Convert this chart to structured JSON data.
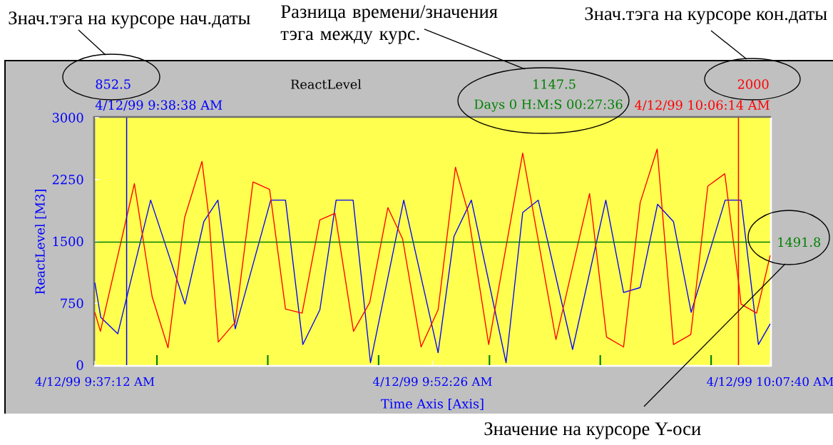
{
  "chart_data": {
    "type": "line",
    "title": "ReactLevel",
    "xlabel": "Time Axis [Axis]",
    "ylabel": "ReactLevel [M3]",
    "xlim": [
      "1999-04-12T09:37:12",
      "1999-04-12T10:07:40"
    ],
    "ylim": [
      0,
      3000
    ],
    "xticks": [
      {
        "value": "1999-04-12T09:37:12",
        "label": "4/12/99 9:37:12 AM"
      },
      {
        "value": "1999-04-12T09:40:00",
        "label": null
      },
      {
        "value": "1999-04-12T09:45:00",
        "label": null
      },
      {
        "value": "1999-04-12T09:50:00",
        "label": null
      },
      {
        "value": "1999-04-12T09:52:26",
        "label": "4/12/99 9:52:26 AM"
      },
      {
        "value": "1999-04-12T09:55:00",
        "label": null
      },
      {
        "value": "1999-04-12T10:00:00",
        "label": null
      },
      {
        "value": "1999-04-12T10:05:00",
        "label": null
      },
      {
        "value": "1999-04-12T10:07:40",
        "label": "4/12/99 10:07:40 AM"
      }
    ],
    "yticks": [
      0,
      750,
      1500,
      2250,
      3000
    ],
    "series": [
      {
        "color": "#0000ff",
        "x": [
          "1999-04-12T09:37:12",
          "1999-04-12T09:37:28",
          "1999-04-12T09:38:14",
          "1999-04-12T09:39:43",
          "1999-04-12T09:41:16",
          "1999-04-12T09:42:07",
          "1999-04-12T09:42:45",
          "1999-04-12T09:43:32",
          "1999-04-12T09:45:08",
          "1999-04-12T09:45:48",
          "1999-04-12T09:46:35",
          "1999-04-12T09:47:21",
          "1999-04-12T09:48:05",
          "1999-04-12T09:48:51",
          "1999-04-12T09:49:38",
          "1999-04-12T09:51:08",
          "1999-04-12T09:52:41",
          "1999-04-12T09:53:24",
          "1999-04-12T09:54:11",
          "1999-04-12T09:55:45",
          "1999-04-12T09:56:30",
          "1999-04-12T09:57:12",
          "1999-04-12T09:58:45",
          "1999-04-12T10:00:15",
          "1999-04-12T10:01:03",
          "1999-04-12T10:01:48",
          "1999-04-12T10:02:35",
          "1999-04-12T10:03:18",
          "1999-04-12T10:04:06",
          "1999-04-12T10:05:38",
          "1999-04-12T10:06:21",
          "1999-04-12T10:07:08",
          "1999-04-12T10:07:40"
        ],
        "values": [
          1000,
          580,
          380,
          2000,
          740,
          1740,
          2000,
          440,
          2000,
          2000,
          250,
          670,
          2000,
          2000,
          30,
          2000,
          150,
          1560,
          2000,
          30,
          1850,
          2000,
          190,
          2000,
          880,
          940,
          1950,
          1740,
          640,
          2000,
          2000,
          250,
          500
        ]
      },
      {
        "color": "#ff0000",
        "x": [
          "1999-04-12T09:37:12",
          "1999-04-12T09:37:27",
          "1999-04-12T09:38:59",
          "1999-04-12T09:39:47",
          "1999-04-12T09:40:30",
          "1999-04-12T09:41:15",
          "1999-04-12T09:42:02",
          "1999-04-12T09:42:21",
          "1999-04-12T09:42:46",
          "1999-04-12T09:43:32",
          "1999-04-12T09:44:20",
          "1999-04-12T09:45:05",
          "1999-04-12T09:45:48",
          "1999-04-12T09:46:33",
          "1999-04-12T09:47:21",
          "1999-04-12T09:48:02",
          "1999-04-12T09:48:52",
          "1999-04-12T09:49:36",
          "1999-04-12T09:50:25",
          "1999-04-12T09:51:05",
          "1999-04-12T09:51:55",
          "1999-04-12T09:52:41",
          "1999-04-12T09:53:28",
          "1999-04-12T09:54:01",
          "1999-04-12T09:54:58",
          "1999-04-12T09:56:30",
          "1999-04-12T09:58:00",
          "1999-04-12T09:59:31",
          "1999-04-12T10:00:17",
          "1999-04-12T10:01:03",
          "1999-04-12T10:01:48",
          "1999-04-12T10:02:34",
          "1999-04-12T10:03:18",
          "1999-04-12T10:04:05",
          "1999-04-12T10:04:51",
          "1999-04-12T10:05:37",
          "1999-04-12T10:06:16",
          "1999-04-12T10:06:21",
          "1999-04-12T10:07:03",
          "1999-04-12T10:07:40"
        ],
        "values": [
          640,
          410,
          2200,
          830,
          210,
          1790,
          2470,
          1780,
          280,
          520,
          2220,
          2130,
          680,
          630,
          1760,
          1840,
          410,
          760,
          1910,
          1530,
          220,
          670,
          2400,
          1870,
          250,
          2570,
          310,
          2080,
          340,
          220,
          1970,
          2620,
          250,
          370,
          2170,
          2320,
          940,
          740,
          630,
          1330
        ]
      }
    ],
    "ref_lines": [
      {
        "axis": "x",
        "value": "1999-04-12T09:38:38",
        "label": "4/12/99 9:38:38 AM",
        "color": "#0000ff"
      },
      {
        "axis": "x",
        "value": "1999-04-12T10:06:14",
        "label": "4/12/99 10:06:14 AM",
        "color": "#ff0000"
      },
      {
        "axis": "y",
        "value": 1491.8,
        "label": "1491.8",
        "color": "#008000"
      }
    ],
    "annotations": [
      "852.5",
      "1147.5",
      "Days 0 H:M:S 00:27:36",
      "2000",
      "Знач.тэга на курсоре нач.даты",
      "Разница времени/значения тэга между курс.",
      "Знач.тэга на курсоре кон.даты",
      "Значение на курсоре Y-оси"
    ],
    "grid": false,
    "legend": false,
    "marker": "none",
    "line_style": "solid"
  }
}
